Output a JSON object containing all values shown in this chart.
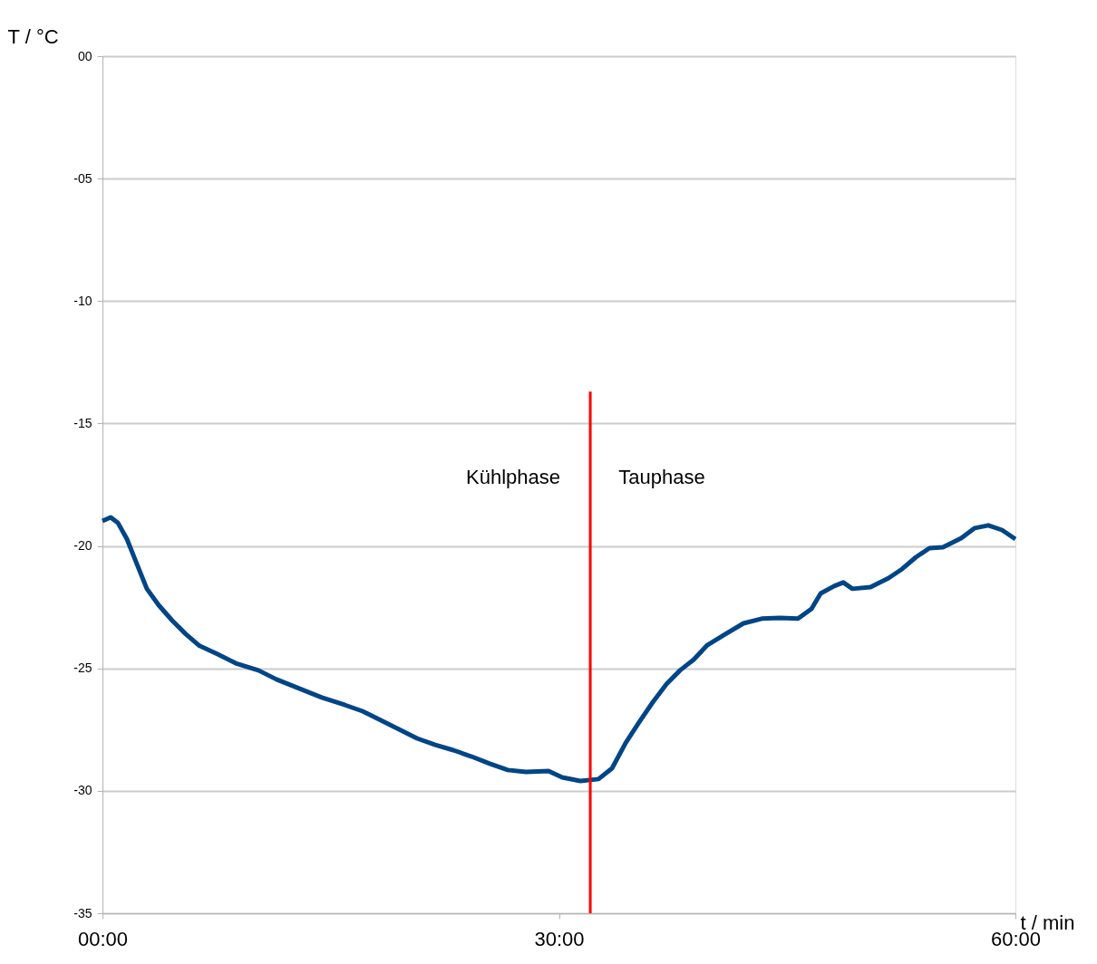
{
  "chart_data": {
    "type": "line",
    "xlabel": "t / min",
    "ylabel": "T / °C",
    "xlim": [
      0,
      60
    ],
    "ylim": [
      -35,
      0
    ],
    "xticks": [
      {
        "value": 0,
        "label": "00:00"
      },
      {
        "value": 30,
        "label": "30:00"
      },
      {
        "value": 60,
        "label": "60:00"
      }
    ],
    "yticks": [
      {
        "value": 0,
        "label": "00"
      },
      {
        "value": -5,
        "label": "-05"
      },
      -10,
      -15,
      -20,
      -25,
      -30,
      -35
    ],
    "grid": "y",
    "marker": "none",
    "line_style": "solid",
    "series": [
      {
        "color": "#004586",
        "x": [
          0,
          0.54,
          1.01,
          1.61,
          2.2,
          2.92,
          3.7,
          4.59,
          5.48,
          6.38,
          7.57,
          8.76,
          10.25,
          11.44,
          12.93,
          14.42,
          15.91,
          17.1,
          18.3,
          19.49,
          20.68,
          21.87,
          23.06,
          24.26,
          25.45,
          26.64,
          27.83,
          29.32,
          30.21,
          31.41,
          32.6,
          33.49,
          34.39,
          35.28,
          36.17,
          37.07,
          37.96,
          38.86,
          39.75,
          40.94,
          42.13,
          43.33,
          44.52,
          45.71,
          46.6,
          47.2,
          48.09,
          48.69,
          49.29,
          50.48,
          51.67,
          52.56,
          53.46,
          54.35,
          55.24,
          56.44,
          57.33,
          58.22,
          59.12,
          60
        ],
        "values": [
          -18.98,
          -18.83,
          -19.05,
          -19.72,
          -20.64,
          -21.75,
          -22.42,
          -23.05,
          -23.6,
          -24.08,
          -24.42,
          -24.79,
          -25.08,
          -25.45,
          -25.82,
          -26.19,
          -26.49,
          -26.75,
          -27.12,
          -27.49,
          -27.86,
          -28.12,
          -28.34,
          -28.6,
          -28.89,
          -29.15,
          -29.23,
          -29.19,
          -29.45,
          -29.6,
          -29.52,
          -29.08,
          -28.04,
          -27.19,
          -26.38,
          -25.64,
          -25.08,
          -24.64,
          -24.05,
          -23.6,
          -23.16,
          -22.97,
          -22.94,
          -22.97,
          -22.57,
          -21.94,
          -21.64,
          -21.49,
          -21.75,
          -21.68,
          -21.31,
          -20.94,
          -20.46,
          -20.09,
          -20.05,
          -19.68,
          -19.27,
          -19.16,
          -19.35,
          -19.72
        ]
      },
      {
        "type": "line",
        "color": "#ff0000",
        "x": [
          32.06,
          32.06
        ],
        "values": [
          -35,
          -13.7
        ]
      }
    ],
    "annotations": [
      "Kühlphase",
      "Tauphase"
    ]
  }
}
